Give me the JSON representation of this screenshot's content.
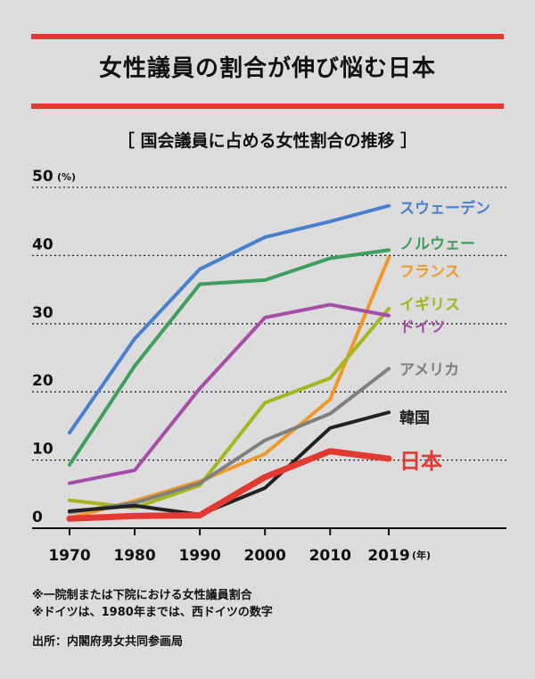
{
  "title": "女性議員の割合が伸び悩む日本",
  "subtitle": "［ 国会議員に占める女性割合の推移 ］",
  "notes": [
    "※一院制または下院における女性議員割合",
    "※ドイツは、1980年までは、西ドイツの数字"
  ],
  "source": "出所：内閣府男女共同参画局",
  "colors": {
    "accent": "#e23a33",
    "background": "#dcdcdc"
  },
  "chart_data": {
    "type": "line",
    "x": [
      1970,
      1980,
      1990,
      2000,
      2010,
      2019
    ],
    "x_tick_labels": [
      "1970",
      "1980",
      "1990",
      "2000",
      "2010",
      "2019"
    ],
    "x_unit": "(年)",
    "y_unit": "(%)",
    "ylim": [
      0,
      50
    ],
    "y_ticks": [
      0,
      10,
      20,
      30,
      40,
      50
    ],
    "grid": "horizontal dotted",
    "series": [
      {
        "name": "スウェーデン",
        "color": "#4a7fd0",
        "values": [
          14,
          27.8,
          38,
          42.7,
          45,
          47.3
        ]
      },
      {
        "name": "ノルウェー",
        "color": "#3e9e5e",
        "values": [
          9.3,
          23.8,
          35.8,
          36.4,
          39.6,
          40.8
        ]
      },
      {
        "name": "フランス",
        "color": "#ee9a2a",
        "values": [
          1.5,
          4,
          6.9,
          10.9,
          18.9,
          39.7
        ]
      },
      {
        "name": "イギリス",
        "color": "#a4b51e",
        "values": [
          4.1,
          3,
          6.3,
          18.4,
          22,
          32.2
        ]
      },
      {
        "name": "ドイツ",
        "color": "#a44ea8",
        "values": [
          6.6,
          8.5,
          20.5,
          30.9,
          32.8,
          31.2
        ]
      },
      {
        "name": "アメリカ",
        "color": "#7f7f7f",
        "values": [
          2.3,
          3.7,
          6.6,
          12.9,
          16.8,
          23.4
        ]
      },
      {
        "name": "韓国",
        "color": "#222222",
        "values": [
          2.5,
          3.3,
          2,
          5.9,
          14.7,
          17
        ]
      },
      {
        "name": "日本",
        "color": "#e23a33",
        "values": [
          1.4,
          1.8,
          1.9,
          7.5,
          11.3,
          10.2
        ]
      }
    ]
  }
}
